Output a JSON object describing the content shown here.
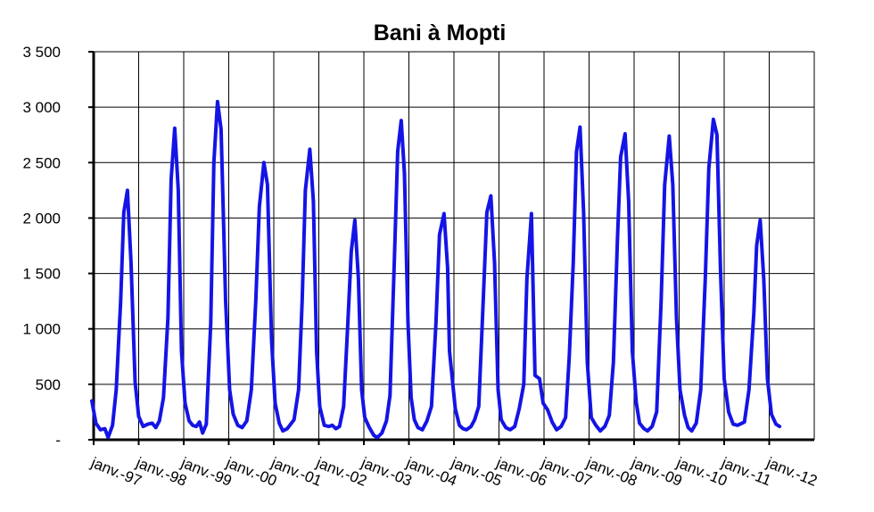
{
  "chart_data": {
    "type": "line",
    "title": "Bani à Mopti",
    "xlabel": "",
    "ylabel": "",
    "ylim": [
      0,
      3500
    ],
    "grid": true,
    "legend": "none",
    "y_ticks": [
      {
        "value": 0,
        "label": "-"
      },
      {
        "value": 500,
        "label": "500"
      },
      {
        "value": 1000,
        "label": "1 000"
      },
      {
        "value": 1500,
        "label": "1 500"
      },
      {
        "value": 2000,
        "label": "2 000"
      },
      {
        "value": 2500,
        "label": "2 500"
      },
      {
        "value": 3000,
        "label": "3 000"
      },
      {
        "value": 3500,
        "label": "3 500"
      }
    ],
    "x_ticks": [
      "janv.-97",
      "janv.-98",
      "janv.-99",
      "janv.-00",
      "janv.-01",
      "janv.-02",
      "janv.-03",
      "janv.-04",
      "janv.-05",
      "janv.-06",
      "janv.-07",
      "janv.-08",
      "janv.-09",
      "janv.-10",
      "janv.-11",
      "janv.-12"
    ],
    "series_color": "#1414e6",
    "series": [
      {
        "values": [
          [
            1996.96,
            350
          ],
          [
            1997.05,
            150
          ],
          [
            1997.15,
            90
          ],
          [
            1997.25,
            100
          ],
          [
            1997.32,
            20
          ],
          [
            1997.42,
            130
          ],
          [
            1997.5,
            450
          ],
          [
            1997.6,
            1250
          ],
          [
            1997.67,
            2050
          ],
          [
            1997.75,
            2250
          ],
          [
            1997.83,
            1600
          ],
          [
            1997.92,
            520
          ],
          [
            1998.0,
            210
          ],
          [
            1998.1,
            120
          ],
          [
            1998.2,
            140
          ],
          [
            1998.3,
            150
          ],
          [
            1998.38,
            110
          ],
          [
            1998.46,
            170
          ],
          [
            1998.55,
            380
          ],
          [
            1998.65,
            1100
          ],
          [
            1998.72,
            2350
          ],
          [
            1998.8,
            2810
          ],
          [
            1998.88,
            2250
          ],
          [
            1998.95,
            800
          ],
          [
            1999.03,
            330
          ],
          [
            1999.12,
            170
          ],
          [
            1999.2,
            130
          ],
          [
            1999.28,
            120
          ],
          [
            1999.35,
            160
          ],
          [
            1999.42,
            60
          ],
          [
            1999.5,
            140
          ],
          [
            1999.6,
            1050
          ],
          [
            1999.67,
            2500
          ],
          [
            1999.75,
            3050
          ],
          [
            1999.83,
            2800
          ],
          [
            1999.93,
            1250
          ],
          [
            2000.02,
            450
          ],
          [
            2000.1,
            230
          ],
          [
            2000.2,
            130
          ],
          [
            2000.3,
            110
          ],
          [
            2000.4,
            170
          ],
          [
            2000.5,
            450
          ],
          [
            2000.6,
            1250
          ],
          [
            2000.68,
            2100
          ],
          [
            2000.78,
            2500
          ],
          [
            2000.86,
            2300
          ],
          [
            2000.95,
            900
          ],
          [
            2001.03,
            330
          ],
          [
            2001.12,
            150
          ],
          [
            2001.2,
            80
          ],
          [
            2001.3,
            100
          ],
          [
            2001.45,
            180
          ],
          [
            2001.55,
            450
          ],
          [
            2001.63,
            1250
          ],
          [
            2001.7,
            2250
          ],
          [
            2001.8,
            2620
          ],
          [
            2001.88,
            2150
          ],
          [
            2001.95,
            800
          ],
          [
            2002.02,
            300
          ],
          [
            2002.12,
            130
          ],
          [
            2002.22,
            120
          ],
          [
            2002.3,
            130
          ],
          [
            2002.38,
            100
          ],
          [
            2002.46,
            120
          ],
          [
            2002.55,
            300
          ],
          [
            2002.65,
            1100
          ],
          [
            2002.72,
            1700
          ],
          [
            2002.8,
            1980
          ],
          [
            2002.88,
            1450
          ],
          [
            2002.95,
            450
          ],
          [
            2003.02,
            200
          ],
          [
            2003.12,
            110
          ],
          [
            2003.22,
            40
          ],
          [
            2003.3,
            20
          ],
          [
            2003.4,
            60
          ],
          [
            2003.5,
            170
          ],
          [
            2003.58,
            400
          ],
          [
            2003.68,
            1650
          ],
          [
            2003.75,
            2600
          ],
          [
            2003.83,
            2880
          ],
          [
            2003.9,
            2400
          ],
          [
            2003.98,
            1050
          ],
          [
            2004.05,
            380
          ],
          [
            2004.12,
            180
          ],
          [
            2004.2,
            110
          ],
          [
            2004.3,
            90
          ],
          [
            2004.4,
            170
          ],
          [
            2004.5,
            300
          ],
          [
            2004.6,
            1050
          ],
          [
            2004.68,
            1850
          ],
          [
            2004.78,
            2040
          ],
          [
            2004.86,
            1550
          ],
          [
            2004.9,
            800
          ],
          [
            2005.03,
            280
          ],
          [
            2005.12,
            130
          ],
          [
            2005.2,
            100
          ],
          [
            2005.28,
            90
          ],
          [
            2005.38,
            120
          ],
          [
            2005.46,
            180
          ],
          [
            2005.55,
            300
          ],
          [
            2005.65,
            1250
          ],
          [
            2005.73,
            2050
          ],
          [
            2005.82,
            2200
          ],
          [
            2005.9,
            1600
          ],
          [
            2005.98,
            450
          ],
          [
            2006.05,
            180
          ],
          [
            2006.15,
            110
          ],
          [
            2006.25,
            90
          ],
          [
            2006.35,
            120
          ],
          [
            2006.45,
            280
          ],
          [
            2006.55,
            500
          ],
          [
            2006.62,
            1450
          ],
          [
            2006.72,
            2040
          ],
          [
            2006.8,
            580
          ],
          [
            2006.9,
            550
          ],
          [
            2006.98,
            330
          ],
          [
            2007.08,
            270
          ],
          [
            2007.18,
            160
          ],
          [
            2007.28,
            90
          ],
          [
            2007.38,
            120
          ],
          [
            2007.48,
            200
          ],
          [
            2007.56,
            750
          ],
          [
            2007.65,
            1600
          ],
          [
            2007.72,
            2600
          ],
          [
            2007.8,
            2820
          ],
          [
            2007.88,
            2050
          ],
          [
            2007.96,
            700
          ],
          [
            2008.05,
            200
          ],
          [
            2008.15,
            130
          ],
          [
            2008.25,
            80
          ],
          [
            2008.35,
            120
          ],
          [
            2008.45,
            220
          ],
          [
            2008.54,
            700
          ],
          [
            2008.63,
            1800
          ],
          [
            2008.7,
            2550
          ],
          [
            2008.8,
            2760
          ],
          [
            2008.88,
            2150
          ],
          [
            2008.96,
            800
          ],
          [
            2009.05,
            330
          ],
          [
            2009.12,
            150
          ],
          [
            2009.22,
            100
          ],
          [
            2009.3,
            80
          ],
          [
            2009.4,
            120
          ],
          [
            2009.5,
            250
          ],
          [
            2009.6,
            1250
          ],
          [
            2009.68,
            2300
          ],
          [
            2009.78,
            2740
          ],
          [
            2009.86,
            2300
          ],
          [
            2009.94,
            1100
          ],
          [
            2010.02,
            450
          ],
          [
            2010.12,
            220
          ],
          [
            2010.2,
            110
          ],
          [
            2010.28,
            80
          ],
          [
            2010.38,
            150
          ],
          [
            2010.48,
            450
          ],
          [
            2010.58,
            1450
          ],
          [
            2010.66,
            2450
          ],
          [
            2010.76,
            2890
          ],
          [
            2010.84,
            2750
          ],
          [
            2010.92,
            1500
          ],
          [
            2011.0,
            550
          ],
          [
            2011.1,
            250
          ],
          [
            2011.2,
            140
          ],
          [
            2011.3,
            130
          ],
          [
            2011.45,
            160
          ],
          [
            2011.55,
            450
          ],
          [
            2011.66,
            1150
          ],
          [
            2011.72,
            1750
          ],
          [
            2011.8,
            1980
          ],
          [
            2011.88,
            1450
          ],
          [
            2011.96,
            550
          ],
          [
            2012.05,
            230
          ],
          [
            2012.15,
            140
          ],
          [
            2012.23,
            120
          ]
        ]
      }
    ]
  }
}
